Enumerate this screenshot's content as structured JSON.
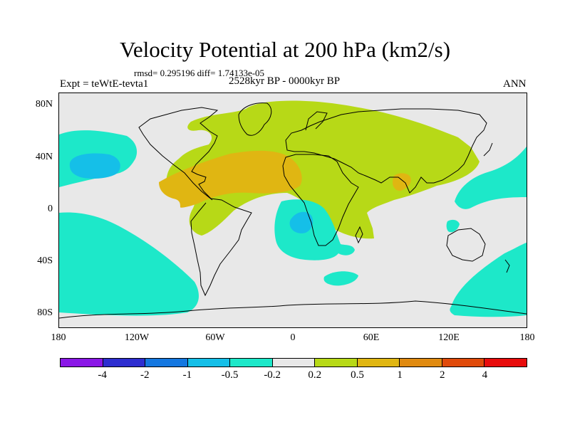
{
  "figure": {
    "title": "Velocity Potential at 200 hPa (km2/s)",
    "stats": "rmsd= 0.295196 diff= 1.74133e-05",
    "expt": "Expt = teWtE-tevta1",
    "period": "2528kyr BP - 0000kyr BP",
    "season": "ANN"
  },
  "map": {
    "projection": "cylindrical equidistant",
    "lon_range": [
      -180,
      180
    ],
    "lat_range": [
      -90,
      90
    ],
    "y_ticks": [
      "80N",
      "40N",
      "0",
      "40S",
      "80S"
    ],
    "x_ticks": [
      "180",
      "120W",
      "60W",
      "0",
      "60E",
      "120E",
      "180"
    ],
    "background_color": "#e8e8e8",
    "land_outline_color": "#000000"
  },
  "colorbar": {
    "colors": [
      "#8a17e6",
      "#2e2ed0",
      "#1477e0",
      "#15bfe8",
      "#1de8c9",
      "#e8e8e8",
      "#b7d917",
      "#e0b612",
      "#e08a10",
      "#e04a0a",
      "#e80c0c"
    ],
    "labels": [
      "-4",
      "-2",
      "-1",
      "-0.5",
      "-0.2",
      "0.2",
      "0.5",
      "1",
      "2",
      "4"
    ]
  },
  "anomaly_regions": [
    {
      "name": "Old-World positive lobe",
      "level": "0.5",
      "color": "#b7d917"
    },
    {
      "name": "Atlantic-Africa positive core",
      "level": "1",
      "color": "#e0b612"
    },
    {
      "name": "Bay of Bengal positive spot",
      "level": "1",
      "color": "#e0b612"
    },
    {
      "name": "North Pacific negative",
      "level": "-0.2",
      "color": "#1de8c9"
    },
    {
      "name": "North Pacific core",
      "level": "-0.5",
      "color": "#15bfe8"
    },
    {
      "name": "South Pacific negative",
      "level": "-0.2",
      "color": "#1de8c9"
    },
    {
      "name": "South Atlantic negative",
      "level": "-0.2",
      "color": "#1de8c9"
    },
    {
      "name": "South Atlantic core",
      "level": "-0.5",
      "color": "#15bfe8"
    },
    {
      "name": "West Pacific negative",
      "level": "-0.2",
      "color": "#1de8c9"
    },
    {
      "name": "Southern Ocean negative",
      "level": "-0.2",
      "color": "#1de8c9"
    }
  ]
}
